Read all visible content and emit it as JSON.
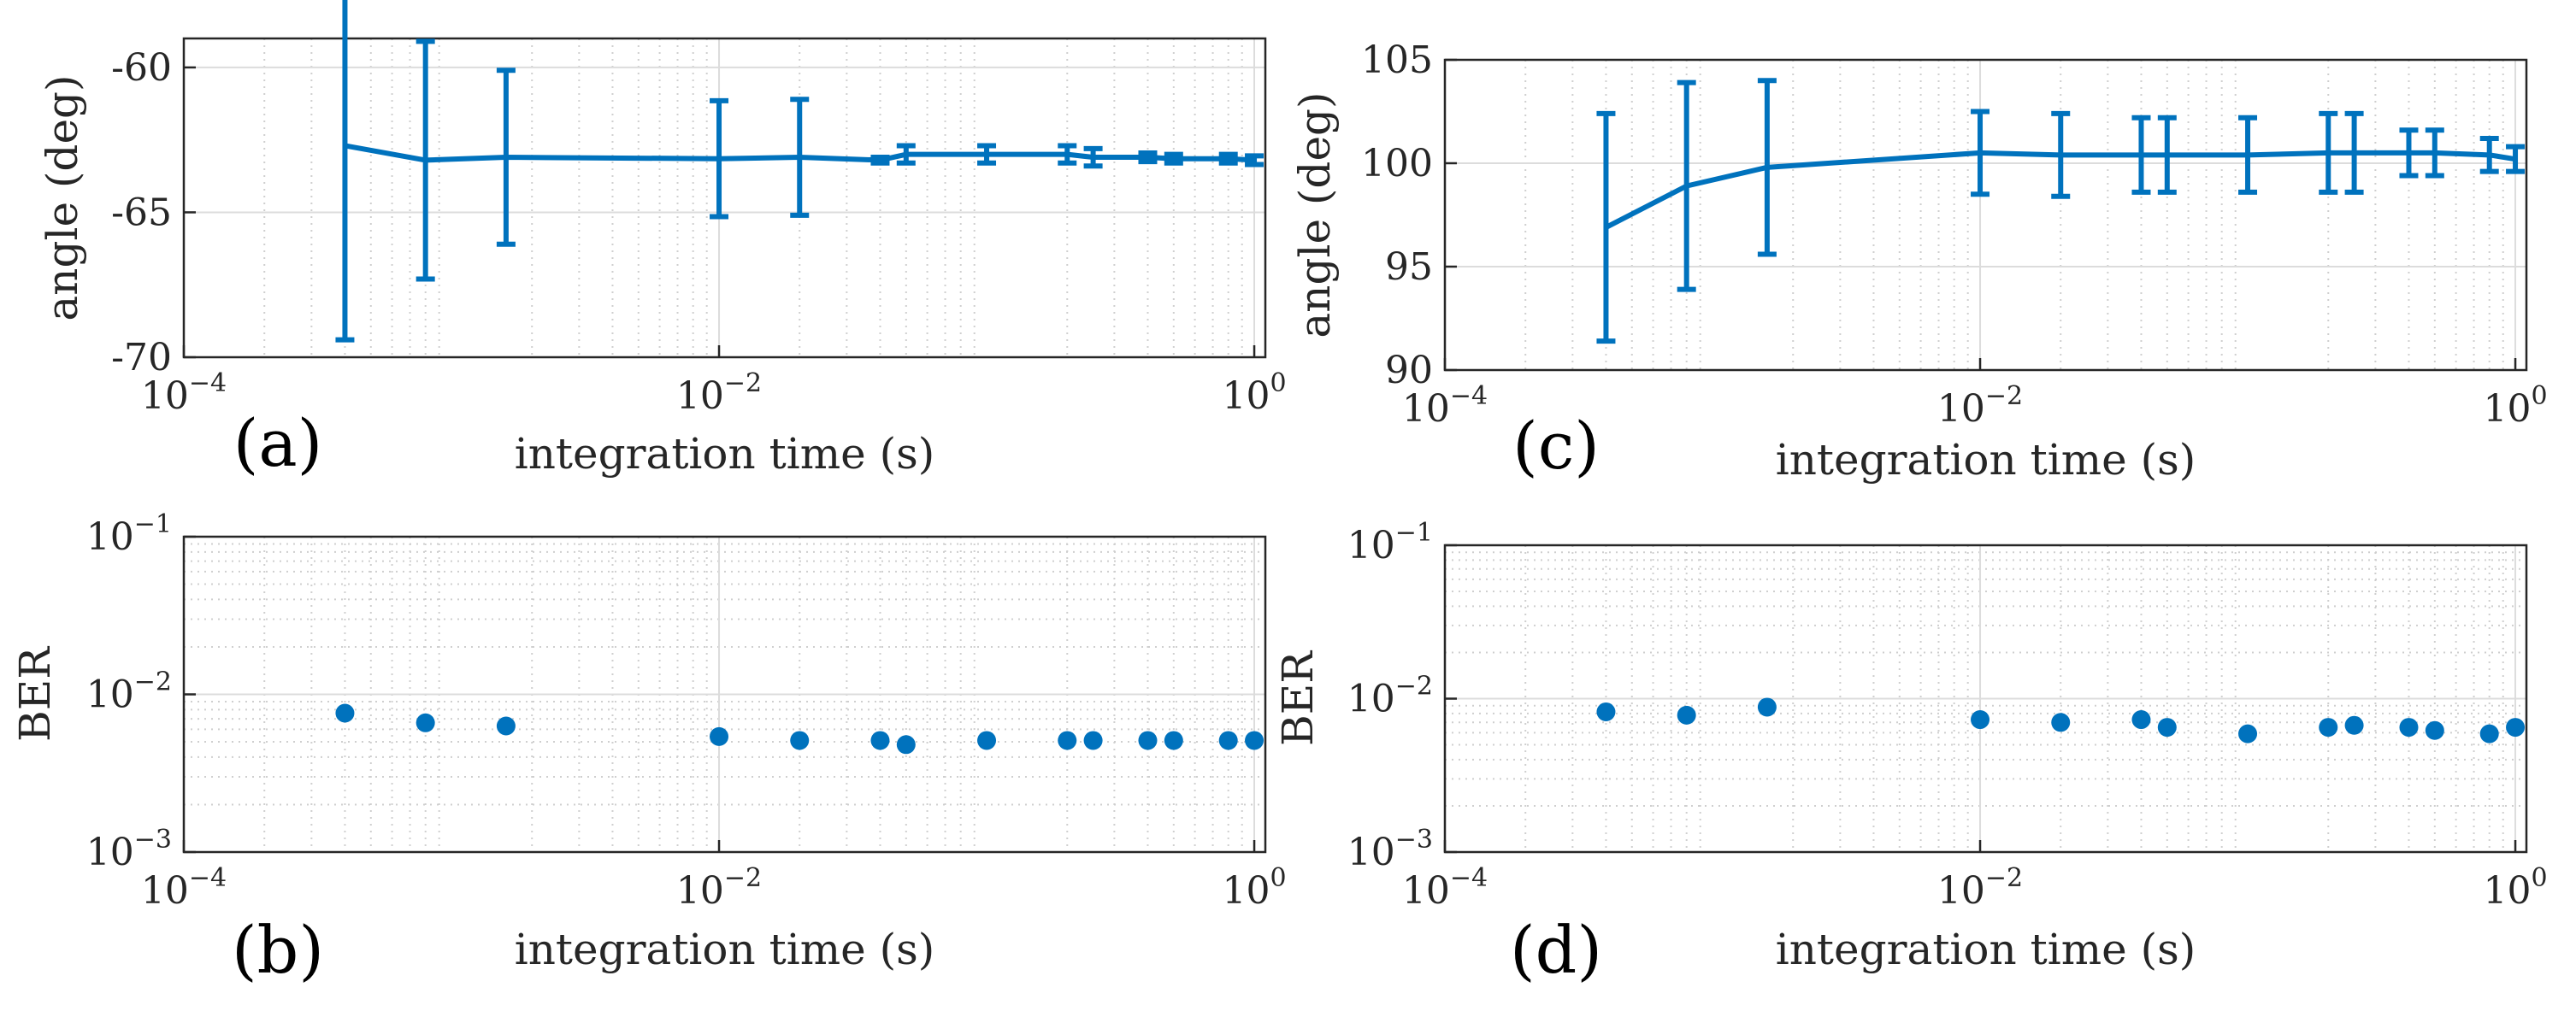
{
  "accent_color": "#0072BD",
  "chart_data": [
    {
      "id": "a",
      "panel_label": "(a)",
      "type": "line",
      "error_bars": true,
      "xscale": "log",
      "yscale": "linear",
      "xlabel": "integration time (s)",
      "ylabel": "angle (deg)",
      "xlim": [
        0.0001,
        1.1
      ],
      "ylim": [
        -70,
        -59
      ],
      "yticks": [
        -70,
        -65,
        -60
      ],
      "ytick_labels": [
        "-70",
        "-65",
        "-60"
      ],
      "xticks": [
        0.0001,
        0.01,
        1
      ],
      "xtick_labels": [
        {
          "base": "10",
          "exp": "−4"
        },
        {
          "base": "10",
          "exp": "−2"
        },
        {
          "base": "10",
          "exp": "0"
        }
      ],
      "grid": true,
      "x": [
        0.0004,
        0.0008,
        0.0016,
        0.01,
        0.02,
        0.04,
        0.05,
        0.1,
        0.2,
        0.25,
        0.4,
        0.5,
        0.8,
        1.0
      ],
      "y": [
        -62.7,
        -63.2,
        -63.1,
        -63.15,
        -63.1,
        -63.2,
        -63.0,
        -63.0,
        -63.0,
        -63.1,
        -63.1,
        -63.15,
        -63.15,
        -63.2
      ],
      "err": [
        6.7,
        4.1,
        3.0,
        2.0,
        2.0,
        0.1,
        0.3,
        0.3,
        0.3,
        0.3,
        0.15,
        0.15,
        0.15,
        0.15
      ]
    },
    {
      "id": "c",
      "panel_label": "(c)",
      "type": "line",
      "error_bars": true,
      "xscale": "log",
      "yscale": "linear",
      "xlabel": "integration time (s)",
      "ylabel": "angle (deg)",
      "xlim": [
        0.0001,
        1.1
      ],
      "ylim": [
        90,
        105
      ],
      "yticks": [
        90,
        95,
        100,
        105
      ],
      "ytick_labels": [
        "90",
        "95",
        "100",
        "105"
      ],
      "xticks": [
        0.0001,
        0.01,
        1
      ],
      "xtick_labels": [
        {
          "base": "10",
          "exp": "−4"
        },
        {
          "base": "10",
          "exp": "−2"
        },
        {
          "base": "10",
          "exp": "0"
        }
      ],
      "grid": true,
      "x": [
        0.0004,
        0.0008,
        0.0016,
        0.01,
        0.02,
        0.04,
        0.05,
        0.1,
        0.2,
        0.25,
        0.4,
        0.5,
        0.8,
        1.0
      ],
      "y": [
        96.9,
        98.9,
        99.8,
        100.5,
        100.4,
        100.4,
        100.4,
        100.4,
        100.5,
        100.5,
        100.5,
        100.5,
        100.4,
        100.2
      ],
      "err": [
        5.5,
        5.0,
        4.2,
        2.0,
        2.0,
        1.8,
        1.8,
        1.8,
        1.9,
        1.9,
        1.1,
        1.1,
        0.8,
        0.6
      ]
    },
    {
      "id": "b",
      "panel_label": "(b)",
      "type": "scatter",
      "xscale": "log",
      "yscale": "log",
      "xlabel": "integration time (s)",
      "ylabel": "BER",
      "xlim": [
        0.0001,
        1.1
      ],
      "ylim": [
        0.001,
        0.1
      ],
      "yticks": [
        0.001,
        0.01,
        0.1
      ],
      "ytick_labels": [
        {
          "base": "10",
          "exp": "−3"
        },
        {
          "base": "10",
          "exp": "−2"
        },
        {
          "base": "10",
          "exp": "−1"
        }
      ],
      "xticks": [
        0.0001,
        0.01,
        1
      ],
      "xtick_labels": [
        {
          "base": "10",
          "exp": "−4"
        },
        {
          "base": "10",
          "exp": "−2"
        },
        {
          "base": "10",
          "exp": "0"
        }
      ],
      "grid": true,
      "x": [
        0.0004,
        0.0008,
        0.0016,
        0.01,
        0.02,
        0.04,
        0.05,
        0.1,
        0.2,
        0.25,
        0.4,
        0.5,
        0.8,
        1.0
      ],
      "y": [
        0.0076,
        0.0066,
        0.0063,
        0.0054,
        0.0051,
        0.0051,
        0.0048,
        0.0051,
        0.0051,
        0.0051,
        0.0051,
        0.0051,
        0.0051,
        0.0051
      ]
    },
    {
      "id": "d",
      "panel_label": "(d)",
      "type": "scatter",
      "xscale": "log",
      "yscale": "log",
      "xlabel": "integration time (s)",
      "ylabel": "BER",
      "xlim": [
        0.0001,
        1.1
      ],
      "ylim": [
        0.001,
        0.1
      ],
      "yticks": [
        0.001,
        0.01,
        0.1
      ],
      "ytick_labels": [
        {
          "base": "10",
          "exp": "−3"
        },
        {
          "base": "10",
          "exp": "−2"
        },
        {
          "base": "10",
          "exp": "−1"
        }
      ],
      "xticks": [
        0.0001,
        0.01,
        1
      ],
      "xtick_labels": [
        {
          "base": "10",
          "exp": "−4"
        },
        {
          "base": "10",
          "exp": "−2"
        },
        {
          "base": "10",
          "exp": "0"
        }
      ],
      "grid": true,
      "x": [
        0.0004,
        0.0008,
        0.0016,
        0.01,
        0.02,
        0.04,
        0.05,
        0.1,
        0.2,
        0.25,
        0.4,
        0.5,
        0.8,
        1.0
      ],
      "y": [
        0.0082,
        0.0078,
        0.0088,
        0.0073,
        0.007,
        0.0073,
        0.0065,
        0.0059,
        0.0065,
        0.0067,
        0.0065,
        0.0062,
        0.0059,
        0.0065
      ]
    }
  ]
}
